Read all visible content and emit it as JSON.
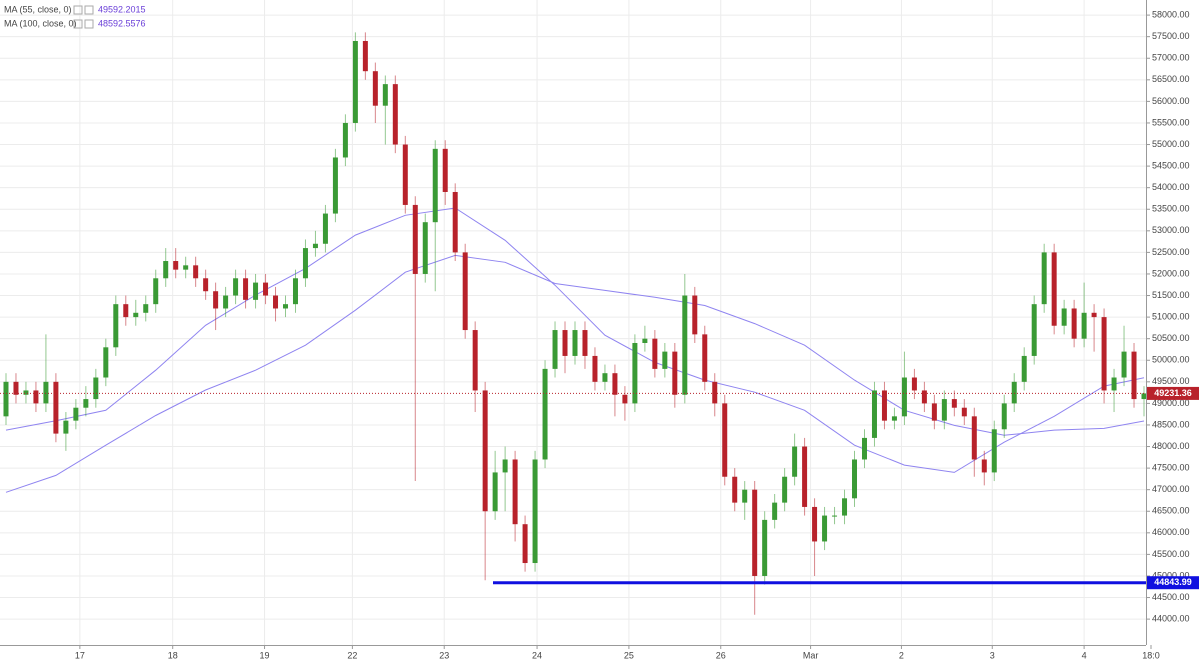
{
  "chart_data": {
    "type": "candlestick",
    "up_color": "#3a9a35",
    "down_color": "#b8222b",
    "open": [
      48700,
      49500,
      49200,
      49300,
      49000,
      49500,
      48300,
      48600,
      48900,
      49100,
      49600,
      50300,
      51300,
      51000,
      51100,
      51300,
      51900,
      52300,
      52100,
      52200,
      51900,
      51600,
      51200,
      51500,
      51900,
      51400,
      51800,
      51500,
      51200,
      51300,
      51900,
      52600,
      52700,
      53400,
      54700,
      55500,
      57400,
      56700,
      55900,
      56400,
      55000,
      53600,
      52000,
      53200,
      54900,
      53900,
      52500,
      50700,
      49300,
      46500,
      47400,
      47700,
      46200,
      45300,
      47700,
      49800,
      50700,
      50100,
      50700,
      50100,
      49500,
      49700,
      49200,
      49000,
      50400,
      50500,
      49800,
      50200,
      49200,
      51500,
      50600,
      49500,
      49000,
      47300,
      46700,
      47000,
      45000,
      46300,
      46700,
      47300,
      48000,
      46600,
      45800,
      46400,
      46400,
      46800,
      47700,
      48200,
      49300,
      48600,
      48700,
      49600,
      49300,
      49000,
      48600,
      49100,
      48900,
      48700,
      47700,
      47400,
      48400,
      49000,
      49500,
      50100,
      51300,
      52500,
      50800,
      51200,
      50500,
      51100,
      51000,
      49300,
      49600,
      50200,
      49100
    ],
    "high": [
      49700,
      49700,
      49500,
      49500,
      50600,
      49700,
      48800,
      49100,
      49400,
      49800,
      50500,
      51500,
      51500,
      51400,
      51500,
      52100,
      52600,
      52600,
      52400,
      52400,
      52100,
      51800,
      51700,
      52100,
      52100,
      52000,
      52000,
      51700,
      51500,
      52100,
      52800,
      53000,
      53600,
      54900,
      55700,
      57600,
      57600,
      56900,
      56600,
      56600,
      55200,
      53800,
      53400,
      55100,
      55100,
      54100,
      52700,
      50900,
      49500,
      47900,
      48000,
      47900,
      46400,
      47900,
      50000,
      50900,
      50900,
      50900,
      50900,
      50300,
      49900,
      49900,
      49400,
      50600,
      50800,
      50700,
      50400,
      50400,
      52000,
      51700,
      50800,
      49700,
      49200,
      47500,
      47200,
      47200,
      46500,
      46900,
      47500,
      48300,
      48200,
      46800,
      46600,
      46600,
      47000,
      47900,
      48400,
      49500,
      49500,
      48900,
      50200,
      49800,
      49500,
      49200,
      49300,
      49300,
      49100,
      48900,
      47900,
      48600,
      49200,
      49700,
      50300,
      51500,
      52700,
      52700,
      51400,
      51400,
      51800,
      51300,
      51200,
      49800,
      50800,
      50400,
      49400
    ],
    "low": [
      48500,
      49000,
      49000,
      48800,
      48800,
      48100,
      47900,
      48400,
      48700,
      48900,
      49400,
      50100,
      50800,
      50800,
      50900,
      51100,
      51700,
      51900,
      51900,
      51700,
      51400,
      50700,
      51000,
      51300,
      51200,
      51200,
      51300,
      50900,
      51000,
      51100,
      51700,
      52400,
      52500,
      53200,
      54500,
      55300,
      56500,
      55500,
      55000,
      54800,
      53400,
      47200,
      51800,
      51600,
      53600,
      52300,
      50500,
      48800,
      44900,
      46300,
      46500,
      45800,
      45100,
      45100,
      47500,
      49600,
      49700,
      49900,
      49800,
      49300,
      49300,
      48700,
      48600,
      48800,
      50200,
      49600,
      49600,
      48900,
      49000,
      50400,
      49300,
      48700,
      47100,
      46500,
      46300,
      44100,
      44800,
      46100,
      46500,
      47100,
      46400,
      45000,
      45600,
      46200,
      46200,
      46600,
      47500,
      48000,
      48400,
      48400,
      48500,
      49100,
      48800,
      48400,
      48400,
      48700,
      48500,
      47300,
      47100,
      47200,
      48200,
      48800,
      49300,
      49900,
      51100,
      50600,
      50600,
      50300,
      50300,
      50200,
      49000,
      48800,
      49400,
      48900,
      48700
    ],
    "close": [
      49500,
      49200,
      49300,
      49000,
      49500,
      48300,
      48600,
      48900,
      49100,
      49600,
      50300,
      51300,
      51000,
      51100,
      51300,
      51900,
      52300,
      52100,
      52200,
      51900,
      51600,
      51200,
      51500,
      51900,
      51400,
      51800,
      51500,
      51200,
      51300,
      51900,
      52600,
      52700,
      53400,
      54700,
      55500,
      57400,
      56700,
      55900,
      56400,
      55000,
      53600,
      52000,
      53200,
      54900,
      53900,
      52500,
      50700,
      49300,
      46500,
      47400,
      47700,
      46200,
      45300,
      47700,
      49800,
      50700,
      50100,
      50700,
      50100,
      49500,
      49700,
      49200,
      49000,
      50400,
      50500,
      49800,
      50200,
      49200,
      51500,
      50600,
      49500,
      49000,
      47300,
      46700,
      47000,
      45000,
      46300,
      46700,
      47300,
      48000,
      46600,
      45800,
      46400,
      46400,
      46800,
      47700,
      48200,
      49300,
      48600,
      48700,
      49600,
      49300,
      49000,
      48600,
      49100,
      48900,
      48700,
      47700,
      47400,
      48400,
      49000,
      49500,
      50100,
      51300,
      52500,
      50800,
      51200,
      50500,
      51100,
      51000,
      49300,
      49600,
      50200,
      49100,
      49231.36
    ],
    "series": [
      {
        "name": "MA (55, close, 0)",
        "color": "#8f84f0",
        "value_color": "#6a3fd8",
        "x": [
          0,
          5,
          10,
          15,
          20,
          25,
          30,
          35,
          40,
          45,
          50,
          55,
          60,
          65,
          70,
          75,
          80,
          85,
          90,
          95,
          100,
          105,
          110,
          114
        ],
        "values": [
          48380,
          48600,
          48840,
          49770,
          50810,
          51510,
          52130,
          52900,
          53360,
          53530,
          52780,
          51740,
          50580,
          49950,
          49540,
          49260,
          48840,
          48030,
          47570,
          47400,
          48100,
          48700,
          49400,
          49592.2015
        ]
      },
      {
        "name": "MA (100, close, 0)",
        "color": "#8f84f0",
        "value_color": "#6a3fd8",
        "x": [
          0,
          5,
          10,
          15,
          20,
          25,
          30,
          35,
          40,
          45,
          50,
          55,
          60,
          65,
          70,
          75,
          80,
          85,
          90,
          95,
          100,
          105,
          110,
          114
        ],
        "values": [
          46940,
          47330,
          48030,
          48720,
          49310,
          49770,
          50350,
          51160,
          52040,
          52430,
          52270,
          51780,
          51620,
          51460,
          51270,
          50850,
          50350,
          49540,
          48840,
          48490,
          48260,
          48380,
          48420,
          48592.5576
        ]
      }
    ],
    "hline": {
      "value": 44843.99,
      "color": "#1010e0"
    },
    "xlim": [
      -0.6,
      114.2
    ],
    "xticks": [
      {
        "value": 7.4,
        "label": "17"
      },
      {
        "value": 16.7,
        "label": "18"
      },
      {
        "value": 25.9,
        "label": "19"
      },
      {
        "value": 34.7,
        "label": "22"
      },
      {
        "value": 43.9,
        "label": "23"
      },
      {
        "value": 53.2,
        "label": "24"
      },
      {
        "value": 62.4,
        "label": "25"
      },
      {
        "value": 71.6,
        "label": "26"
      },
      {
        "value": 80.6,
        "label": "Mar"
      },
      {
        "value": 89.7,
        "label": "2"
      },
      {
        "value": 98.8,
        "label": "3"
      },
      {
        "value": 108,
        "label": "4"
      },
      {
        "value": 114.7,
        "label": "18:0"
      }
    ],
    "ylim": [
      43400,
      58350
    ],
    "yticks": [
      {
        "value": 44000,
        "label": "44000.00"
      },
      {
        "value": 44500,
        "label": "44500.00"
      },
      {
        "value": 45000,
        "label": "45000.00"
      },
      {
        "value": 45500,
        "label": "45500.00"
      },
      {
        "value": 46000,
        "label": "46000.00"
      },
      {
        "value": 46500,
        "label": "46500.00"
      },
      {
        "value": 47000,
        "label": "47000.00"
      },
      {
        "value": 47500,
        "label": "47500.00"
      },
      {
        "value": 48000,
        "label": "48000.00"
      },
      {
        "value": 48500,
        "label": "48500.00"
      },
      {
        "value": 49000,
        "label": "49000.00"
      },
      {
        "value": 49500,
        "label": "49500.00"
      },
      {
        "value": 50000,
        "label": "50000.00"
      },
      {
        "value": 50500,
        "label": "50500.00"
      },
      {
        "value": 51000,
        "label": "51000.00"
      },
      {
        "value": 51500,
        "label": "51500.00"
      },
      {
        "value": 52000,
        "label": "52000.00"
      },
      {
        "value": 52500,
        "label": "52500.00"
      },
      {
        "value": 53000,
        "label": "53000.00"
      },
      {
        "value": 53500,
        "label": "53500.00"
      },
      {
        "value": 54000,
        "label": "54000.00"
      },
      {
        "value": 54500,
        "label": "54500.00"
      },
      {
        "value": 55000,
        "label": "55000.00"
      },
      {
        "value": 55500,
        "label": "55500.00"
      },
      {
        "value": 56000,
        "label": "56000.00"
      },
      {
        "value": 56500,
        "label": "56500.00"
      },
      {
        "value": 57000,
        "label": "57000.00"
      },
      {
        "value": 57500,
        "label": "57500.00"
      },
      {
        "value": 58000,
        "label": "58000.00"
      }
    ],
    "grid": true
  }
}
